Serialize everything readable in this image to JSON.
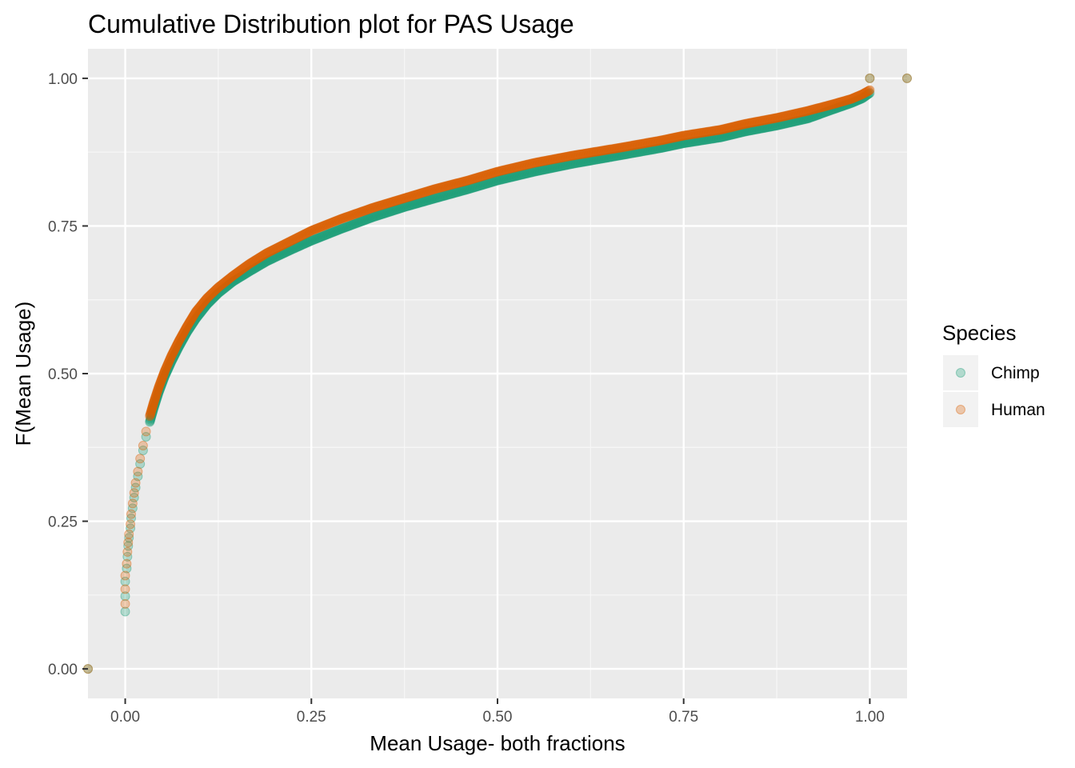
{
  "chart_data": {
    "type": "scatter",
    "title": "Cumulative Distribution plot for PAS Usage",
    "xlabel": "Mean Usage- both fractions",
    "ylabel": "F(Mean Usage)",
    "xlim": [
      -0.05,
      1.05
    ],
    "ylim": [
      -0.05,
      1.05
    ],
    "x_ticks": [
      0,
      0.25,
      0.5,
      0.75,
      1.0
    ],
    "x_tick_labels": [
      "0.00",
      "0.25",
      "0.50",
      "0.75",
      "1.00"
    ],
    "y_ticks": [
      0,
      0.25,
      0.5,
      0.75,
      1.0
    ],
    "y_tick_labels": [
      "0.00",
      "0.25",
      "0.50",
      "0.75",
      "1.00"
    ],
    "grid": true,
    "legend": {
      "title": "Species",
      "position": "right"
    },
    "series": [
      {
        "name": "Chimp",
        "color": "#1b9e77",
        "points": [
          [
            0,
            0.097
          ],
          [
            0,
            0.123
          ],
          [
            0,
            0.148
          ],
          [
            0.002,
            0.17
          ],
          [
            0.003,
            0.19
          ],
          [
            0.004,
            0.208
          ],
          [
            0.005,
            0.222
          ],
          [
            0.007,
            0.238
          ],
          [
            0.008,
            0.255
          ],
          [
            0.01,
            0.272
          ],
          [
            0.012,
            0.29
          ],
          [
            0.014,
            0.307
          ],
          [
            0.017,
            0.326
          ],
          [
            0.02,
            0.347
          ],
          [
            0.024,
            0.37
          ],
          [
            0.028,
            0.393
          ],
          [
            0.033,
            0.418
          ],
          [
            0.038,
            0.44
          ],
          [
            0.045,
            0.468
          ],
          [
            0.053,
            0.495
          ],
          [
            0.062,
            0.52
          ],
          [
            0.072,
            0.545
          ],
          [
            0.083,
            0.57
          ],
          [
            0.095,
            0.593
          ],
          [
            0.11,
            0.617
          ],
          [
            0.125,
            0.636
          ],
          [
            0.145,
            0.656
          ],
          [
            0.167,
            0.673
          ],
          [
            0.19,
            0.69
          ],
          [
            0.22,
            0.708
          ],
          [
            0.25,
            0.725
          ],
          [
            0.29,
            0.745
          ],
          [
            0.333,
            0.765
          ],
          [
            0.375,
            0.782
          ],
          [
            0.417,
            0.797
          ],
          [
            0.46,
            0.812
          ],
          [
            0.5,
            0.827
          ],
          [
            0.55,
            0.842
          ],
          [
            0.6,
            0.855
          ],
          [
            0.667,
            0.87
          ],
          [
            0.72,
            0.882
          ],
          [
            0.75,
            0.89
          ],
          [
            0.8,
            0.9
          ],
          [
            0.833,
            0.91
          ],
          [
            0.875,
            0.92
          ],
          [
            0.917,
            0.932
          ],
          [
            0.95,
            0.947
          ],
          [
            0.975,
            0.958
          ],
          [
            0.99,
            0.966
          ],
          [
            1.0,
            0.975
          ],
          [
            1.0,
            1.0
          ],
          [
            1.05,
            1.0
          ],
          [
            -0.05,
            0.0
          ]
        ]
      },
      {
        "name": "Human",
        "color": "#d95f02",
        "points": [
          [
            0,
            0.11
          ],
          [
            0,
            0.135
          ],
          [
            0,
            0.158
          ],
          [
            0.002,
            0.178
          ],
          [
            0.003,
            0.198
          ],
          [
            0.004,
            0.214
          ],
          [
            0.005,
            0.228
          ],
          [
            0.007,
            0.245
          ],
          [
            0.008,
            0.262
          ],
          [
            0.01,
            0.28
          ],
          [
            0.012,
            0.298
          ],
          [
            0.014,
            0.315
          ],
          [
            0.017,
            0.334
          ],
          [
            0.02,
            0.356
          ],
          [
            0.024,
            0.378
          ],
          [
            0.028,
            0.402
          ],
          [
            0.033,
            0.428
          ],
          [
            0.038,
            0.45
          ],
          [
            0.045,
            0.477
          ],
          [
            0.053,
            0.504
          ],
          [
            0.062,
            0.53
          ],
          [
            0.072,
            0.555
          ],
          [
            0.083,
            0.58
          ],
          [
            0.095,
            0.605
          ],
          [
            0.11,
            0.628
          ],
          [
            0.125,
            0.646
          ],
          [
            0.145,
            0.666
          ],
          [
            0.167,
            0.686
          ],
          [
            0.19,
            0.704
          ],
          [
            0.22,
            0.723
          ],
          [
            0.25,
            0.742
          ],
          [
            0.29,
            0.762
          ],
          [
            0.333,
            0.781
          ],
          [
            0.375,
            0.797
          ],
          [
            0.417,
            0.813
          ],
          [
            0.46,
            0.827
          ],
          [
            0.5,
            0.842
          ],
          [
            0.55,
            0.857
          ],
          [
            0.6,
            0.869
          ],
          [
            0.667,
            0.883
          ],
          [
            0.72,
            0.895
          ],
          [
            0.75,
            0.903
          ],
          [
            0.8,
            0.913
          ],
          [
            0.833,
            0.923
          ],
          [
            0.875,
            0.933
          ],
          [
            0.917,
            0.945
          ],
          [
            0.95,
            0.956
          ],
          [
            0.975,
            0.965
          ],
          [
            0.99,
            0.973
          ],
          [
            1.0,
            0.98
          ],
          [
            1.0,
            1.0
          ],
          [
            1.05,
            1.0
          ],
          [
            -0.05,
            0.0
          ]
        ]
      }
    ]
  }
}
